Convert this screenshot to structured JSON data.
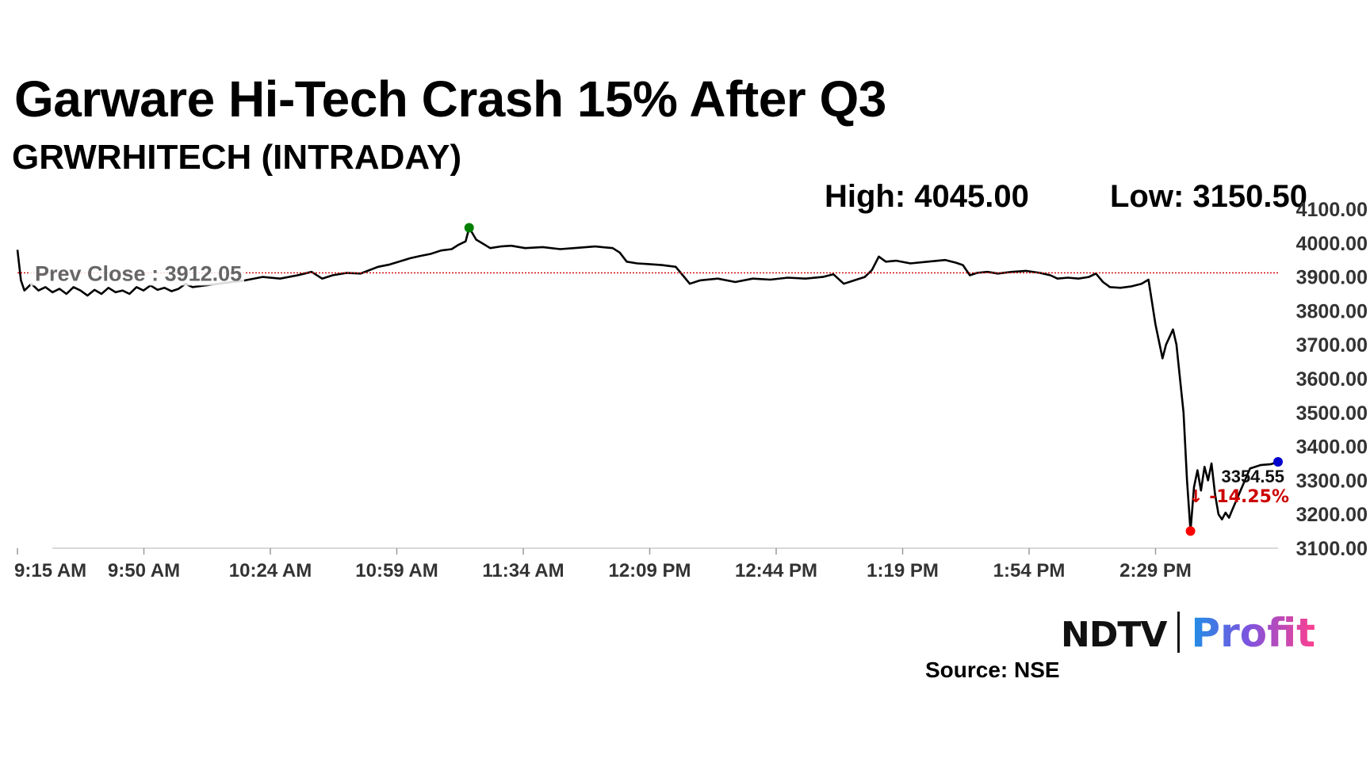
{
  "title": "Garware Hi-Tech Crash 15% After Q3",
  "subtitle": "GRWRHITECH (INTRADAY)",
  "stats": {
    "high": "High: 4045.00",
    "low": "Low: 3150.50"
  },
  "source": "Source: NSE",
  "brand": {
    "ndtv": "NDTV",
    "profit": "Profit"
  },
  "chart_data": {
    "type": "line",
    "x_ticks": [
      "9:15 AM",
      "9:50 AM",
      "10:24 AM",
      "10:59 AM",
      "11:34 AM",
      "12:09 PM",
      "12:44 PM",
      "1:19 PM",
      "1:54 PM",
      "2:29 PM"
    ],
    "y_ticks": [
      "3100.00",
      "3200.00",
      "3300.00",
      "3400.00",
      "3500.00",
      "3600.00",
      "3700.00",
      "3800.00",
      "3900.00",
      "4000.00",
      "4100.00"
    ],
    "ylim": [
      3100,
      4100
    ],
    "x_minutes_range": [
      0,
      360
    ],
    "prev_close": {
      "label": "Prev Close : 3912.05",
      "value": 3912.05,
      "color": "#cc0000"
    },
    "series": [
      {
        "color": "#000000",
        "points": [
          [
            0,
            3980
          ],
          [
            1,
            3890
          ],
          [
            2,
            3860
          ],
          [
            4,
            3880
          ],
          [
            6,
            3860
          ],
          [
            8,
            3870
          ],
          [
            10,
            3855
          ],
          [
            12,
            3865
          ],
          [
            14,
            3850
          ],
          [
            16,
            3870
          ],
          [
            18,
            3860
          ],
          [
            20,
            3845
          ],
          [
            22,
            3862
          ],
          [
            24,
            3850
          ],
          [
            26,
            3868
          ],
          [
            28,
            3855
          ],
          [
            30,
            3860
          ],
          [
            32,
            3850
          ],
          [
            34,
            3870
          ],
          [
            36,
            3860
          ],
          [
            38,
            3875
          ],
          [
            40,
            3862
          ],
          [
            42,
            3868
          ],
          [
            44,
            3858
          ],
          [
            46,
            3865
          ],
          [
            48,
            3880
          ],
          [
            50,
            3870
          ],
          [
            65,
            3890
          ],
          [
            70,
            3900
          ],
          [
            75,
            3895
          ],
          [
            80,
            3905
          ],
          [
            84,
            3915
          ],
          [
            87,
            3895
          ],
          [
            90,
            3905
          ],
          [
            94,
            3912
          ],
          [
            98,
            3910
          ],
          [
            100,
            3918
          ],
          [
            103,
            3930
          ],
          [
            106,
            3936
          ],
          [
            109,
            3945
          ],
          [
            112,
            3955
          ],
          [
            115,
            3962
          ],
          [
            118,
            3968
          ],
          [
            121,
            3978
          ],
          [
            124,
            3982
          ],
          [
            126,
            3995
          ],
          [
            128,
            4005
          ],
          [
            129,
            4045
          ],
          [
            131,
            4010
          ],
          [
            133,
            3998
          ],
          [
            135,
            3985
          ],
          [
            138,
            3990
          ],
          [
            141,
            3992
          ],
          [
            145,
            3985
          ],
          [
            150,
            3988
          ],
          [
            155,
            3982
          ],
          [
            160,
            3986
          ],
          [
            165,
            3990
          ],
          [
            170,
            3985
          ],
          [
            172,
            3972
          ],
          [
            174,
            3945
          ],
          [
            177,
            3940
          ],
          [
            180,
            3938
          ],
          [
            184,
            3935
          ],
          [
            188,
            3930
          ],
          [
            190,
            3905
          ],
          [
            192,
            3880
          ],
          [
            195,
            3890
          ],
          [
            200,
            3895
          ],
          [
            205,
            3885
          ],
          [
            210,
            3895
          ],
          [
            215,
            3892
          ],
          [
            220,
            3898
          ],
          [
            225,
            3895
          ],
          [
            230,
            3900
          ],
          [
            233,
            3908
          ],
          [
            236,
            3880
          ],
          [
            239,
            3890
          ],
          [
            242,
            3900
          ],
          [
            244,
            3920
          ],
          [
            246,
            3960
          ],
          [
            248,
            3945
          ],
          [
            251,
            3948
          ],
          [
            255,
            3940
          ],
          [
            260,
            3945
          ],
          [
            265,
            3950
          ],
          [
            268,
            3942
          ],
          [
            270,
            3935
          ],
          [
            272,
            3905
          ],
          [
            274,
            3912
          ],
          [
            277,
            3915
          ],
          [
            280,
            3910
          ],
          [
            284,
            3915
          ],
          [
            288,
            3918
          ],
          [
            292,
            3912
          ],
          [
            295,
            3905
          ],
          [
            297,
            3895
          ],
          [
            300,
            3898
          ],
          [
            303,
            3895
          ],
          [
            306,
            3900
          ],
          [
            308,
            3910
          ],
          [
            310,
            3885
          ],
          [
            312,
            3870
          ],
          [
            315,
            3868
          ],
          [
            318,
            3872
          ],
          [
            321,
            3880
          ],
          [
            323,
            3892
          ],
          [
            325,
            3760
          ],
          [
            327,
            3660
          ],
          [
            328,
            3700
          ],
          [
            330,
            3745
          ],
          [
            331,
            3700
          ],
          [
            333,
            3500
          ],
          [
            334,
            3300
          ],
          [
            335,
            3150.5
          ],
          [
            336,
            3280
          ],
          [
            337,
            3330
          ],
          [
            338,
            3270
          ],
          [
            339,
            3340
          ],
          [
            340,
            3300
          ],
          [
            341,
            3350
          ],
          [
            342,
            3260
          ],
          [
            343,
            3200
          ],
          [
            344,
            3185
          ],
          [
            345,
            3205
          ],
          [
            346,
            3190
          ],
          [
            347,
            3215
          ]
        ]
      },
      {
        "color": "#000000",
        "points": [
          [
            347,
            3215
          ],
          [
            352,
            3335
          ],
          [
            355,
            3345
          ],
          [
            358,
            3348
          ],
          [
            360,
            3354.55
          ]
        ]
      }
    ],
    "markers": [
      {
        "name": "day-high",
        "x": 129,
        "y": 4045,
        "color": "#008000"
      },
      {
        "name": "day-low",
        "x": 335,
        "y": 3150.5,
        "color": "#ff0000"
      },
      {
        "name": "last",
        "x": 360,
        "y": 3354.55,
        "color": "#0000cc"
      }
    ],
    "last_value": "3354.55",
    "change": {
      "text": "-14.25%",
      "arrow": "↓",
      "color": "#cc0000"
    },
    "grid": false
  }
}
